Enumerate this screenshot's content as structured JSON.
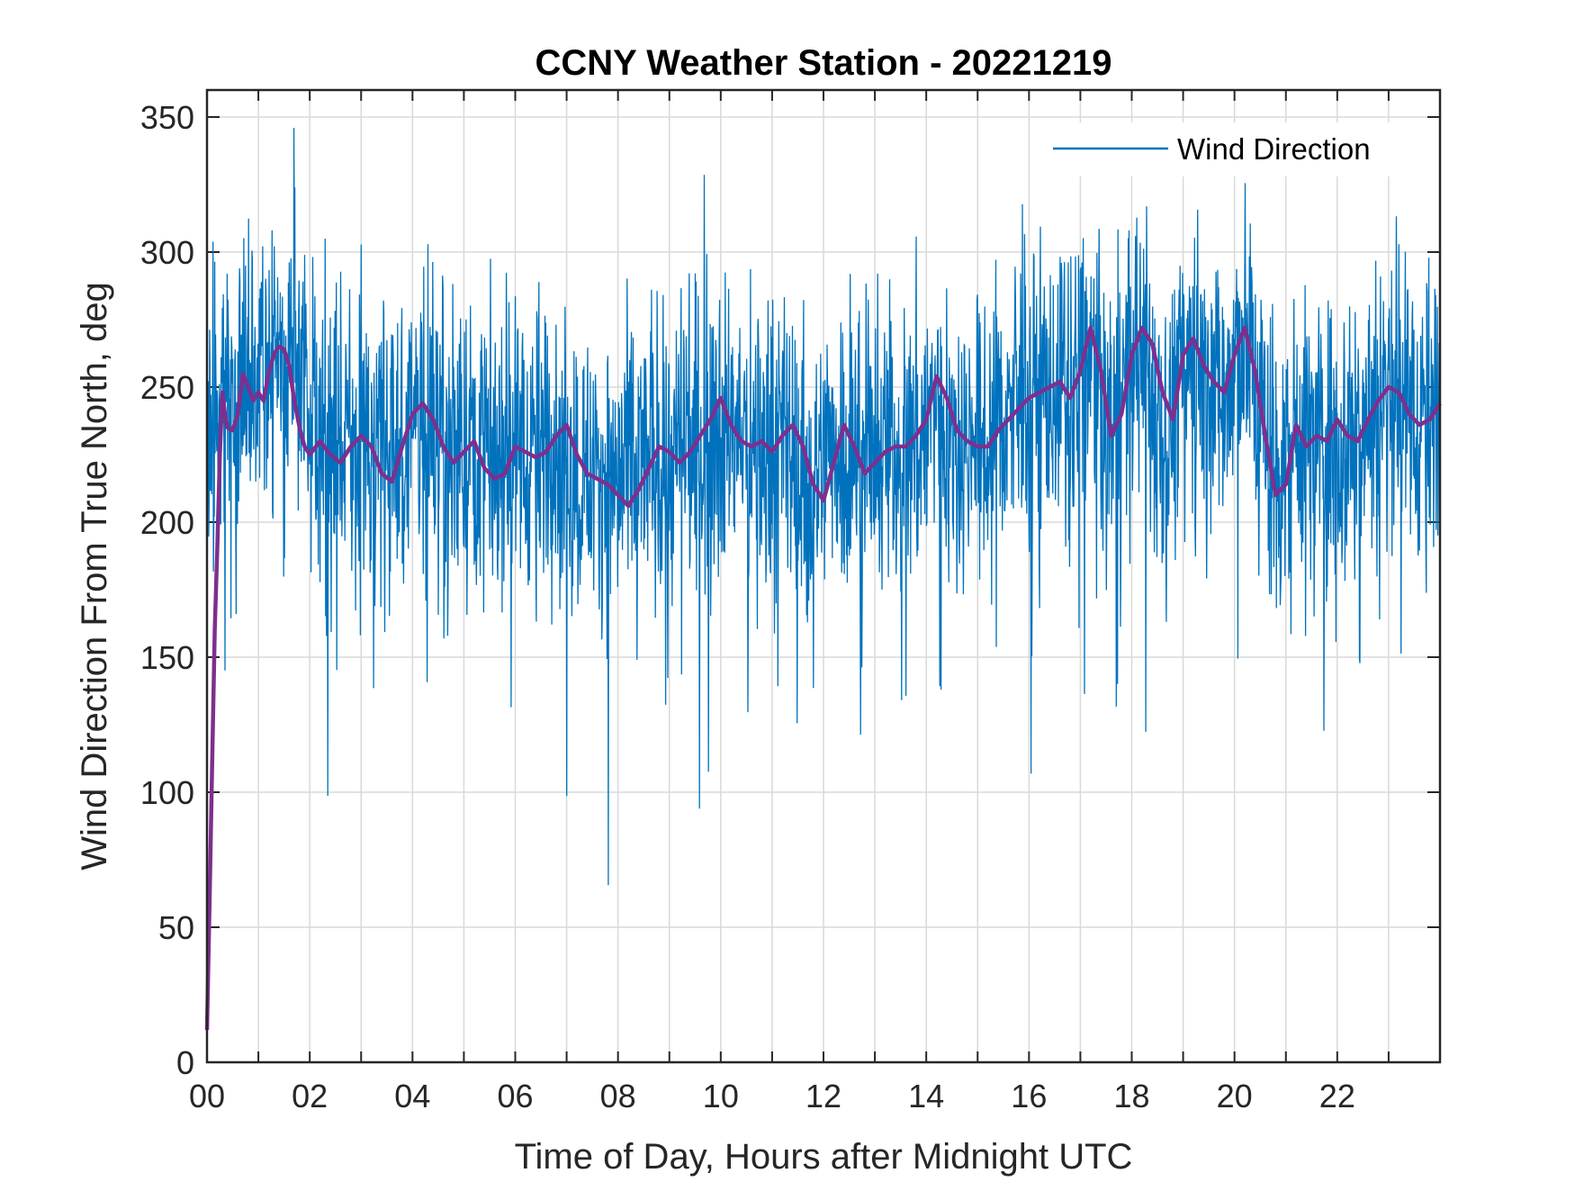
{
  "chart_data": {
    "type": "line",
    "title": "CCNY Weather Station - 20221219",
    "xlabel": "Time of Day, Hours after Midnight UTC",
    "ylabel": "Wind Direction From True North, deg",
    "xlim": [
      0,
      24
    ],
    "ylim": [
      0,
      360
    ],
    "x_ticks": [
      0,
      2,
      4,
      6,
      8,
      10,
      12,
      14,
      16,
      18,
      20,
      22
    ],
    "x_tick_labels": [
      "00",
      "02",
      "04",
      "06",
      "08",
      "10",
      "12",
      "14",
      "16",
      "18",
      "20",
      "22"
    ],
    "y_ticks": [
      0,
      50,
      100,
      150,
      200,
      250,
      300,
      350
    ],
    "y_tick_labels": [
      "0",
      "50",
      "100",
      "150",
      "200",
      "250",
      "300",
      "350"
    ],
    "grid": true,
    "legend": {
      "placement": "top-right",
      "entries": [
        "Wind Direction"
      ]
    },
    "series": [
      {
        "name": "Wind Direction",
        "color": "#0072BD",
        "note_x_units": "hours",
        "mean_x": [
          0,
          0.1,
          0.2,
          0.3,
          0.5,
          0.7,
          1.0,
          1.3,
          1.6,
          1.9,
          2.2,
          2.5,
          2.8,
          3.1,
          3.4,
          3.7,
          4.0,
          4.3,
          4.6,
          4.9,
          5.2,
          5.5,
          5.8,
          6.1,
          6.4,
          6.7,
          7.0,
          7.3,
          7.6,
          7.9,
          8.2,
          8.5,
          8.8,
          9.1,
          9.4,
          9.7,
          10.0,
          10.3,
          10.6,
          10.9,
          11.2,
          11.5,
          11.8,
          12.1,
          12.4,
          12.7,
          13.0,
          13.3,
          13.6,
          13.9,
          14.2,
          14.5,
          14.8,
          15.1,
          15.4,
          15.7,
          16.0,
          16.3,
          16.6,
          16.9,
          17.2,
          17.5,
          17.8,
          18.1,
          18.4,
          18.7,
          19.0,
          19.3,
          19.6,
          19.9,
          20.2,
          20.5,
          20.8,
          21.1,
          21.4,
          21.7,
          22.0,
          22.3,
          22.6,
          22.9,
          23.2,
          23.5,
          23.8,
          24.0
        ],
        "mean_y": [
          240,
          235,
          237,
          240,
          245,
          252,
          250,
          258,
          262,
          248,
          232,
          228,
          235,
          226,
          235,
          222,
          240,
          240,
          230,
          225,
          232,
          222,
          228,
          230,
          226,
          232,
          220,
          218,
          218,
          215,
          213,
          223,
          225,
          222,
          226,
          232,
          235,
          232,
          228,
          230,
          228,
          222,
          210,
          232,
          228,
          222,
          224,
          228,
          228,
          232,
          245,
          232,
          228,
          230,
          235,
          245,
          248,
          250,
          247,
          245,
          260,
          232,
          250,
          265,
          240,
          232,
          262,
          255,
          248,
          250,
          268,
          245,
          210,
          232,
          236,
          230,
          228,
          232,
          238,
          245,
          250,
          240,
          236,
          243
        ],
        "spread": 32,
        "min_y": 8,
        "max_y": 346
      },
      {
        "name": "",
        "color": "#7E2F8E",
        "x": [
          0.0,
          0.05,
          0.1,
          0.15,
          0.2,
          0.25,
          0.3,
          0.35,
          0.4,
          0.5,
          0.6,
          0.7,
          0.8,
          0.9,
          1.0,
          1.1,
          1.2,
          1.3,
          1.4,
          1.5,
          1.6,
          1.7,
          1.8,
          1.9,
          2.0,
          2.2,
          2.4,
          2.6,
          2.8,
          3.0,
          3.2,
          3.4,
          3.6,
          3.8,
          4.0,
          4.2,
          4.4,
          4.6,
          4.8,
          5.0,
          5.2,
          5.4,
          5.6,
          5.8,
          6.0,
          6.2,
          6.4,
          6.6,
          6.8,
          7.0,
          7.2,
          7.4,
          7.6,
          7.8,
          8.0,
          8.2,
          8.4,
          8.6,
          8.8,
          9.0,
          9.2,
          9.4,
          9.6,
          9.8,
          10.0,
          10.2,
          10.4,
          10.6,
          10.8,
          11.0,
          11.2,
          11.4,
          11.6,
          11.8,
          12.0,
          12.2,
          12.4,
          12.6,
          12.8,
          13.0,
          13.2,
          13.4,
          13.6,
          13.8,
          14.0,
          14.2,
          14.4,
          14.6,
          14.8,
          15.0,
          15.2,
          15.4,
          15.6,
          15.8,
          16.0,
          16.2,
          16.4,
          16.6,
          16.8,
          17.0,
          17.2,
          17.4,
          17.6,
          17.8,
          18.0,
          18.2,
          18.4,
          18.6,
          18.8,
          19.0,
          19.2,
          19.4,
          19.6,
          19.8,
          20.0,
          20.2,
          20.4,
          20.6,
          20.8,
          21.0,
          21.2,
          21.4,
          21.6,
          21.8,
          22.0,
          22.2,
          22.4,
          22.6,
          22.8,
          23.0,
          23.2,
          23.4,
          23.6,
          23.8,
          24.0
        ],
        "y": [
          12,
          60,
          110,
          160,
          190,
          225,
          248,
          240,
          235,
          234,
          240,
          255,
          250,
          245,
          248,
          245,
          255,
          262,
          265,
          264,
          258,
          245,
          235,
          228,
          225,
          230,
          225,
          222,
          228,
          232,
          228,
          218,
          215,
          228,
          240,
          244,
          238,
          228,
          222,
          226,
          230,
          220,
          216,
          218,
          228,
          226,
          224,
          226,
          232,
          236,
          225,
          218,
          216,
          214,
          210,
          206,
          212,
          220,
          228,
          226,
          222,
          226,
          232,
          238,
          246,
          236,
          230,
          228,
          230,
          226,
          232,
          236,
          228,
          214,
          208,
          222,
          236,
          228,
          218,
          222,
          226,
          228,
          228,
          232,
          238,
          254,
          246,
          234,
          230,
          228,
          228,
          234,
          238,
          242,
          246,
          248,
          250,
          252,
          246,
          256,
          272,
          256,
          232,
          240,
          262,
          272,
          266,
          248,
          238,
          262,
          268,
          258,
          252,
          248,
          262,
          272,
          256,
          232,
          210,
          214,
          236,
          228,
          232,
          230,
          238,
          232,
          230,
          238,
          245,
          250,
          248,
          240,
          236,
          238,
          244
        ]
      }
    ]
  }
}
